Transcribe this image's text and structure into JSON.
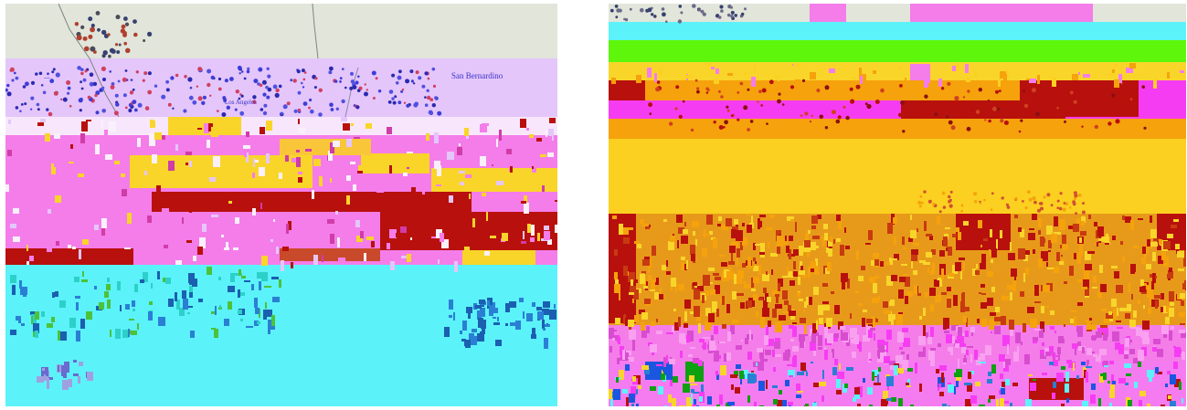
{
  "maps": [
    {
      "id": "left",
      "labels": {
        "san_bernardino": "San Bernardino",
        "west_fragment": "...",
        "los_angeles_fragment": "Los Angeles"
      },
      "colors": {
        "land": "#e1e5da",
        "lavender": "#e4c6fb",
        "pink": "#f47de9",
        "yellow": "#f9d52a",
        "dark_red": "#b8100d",
        "cyan": "#5cf2fa",
        "dot_blue": "#3d3dd6",
        "dot_dark": "#384070"
      }
    },
    {
      "id": "right",
      "colors": {
        "land": "#e1e5da",
        "cyan": "#5cf2fa",
        "green": "#5ef70c",
        "yellow": "#f9d52a",
        "orange": "#f5a20c",
        "dark_red": "#b8100d",
        "magenta": "#f63cf3",
        "pink": "#f47de9"
      }
    }
  ]
}
